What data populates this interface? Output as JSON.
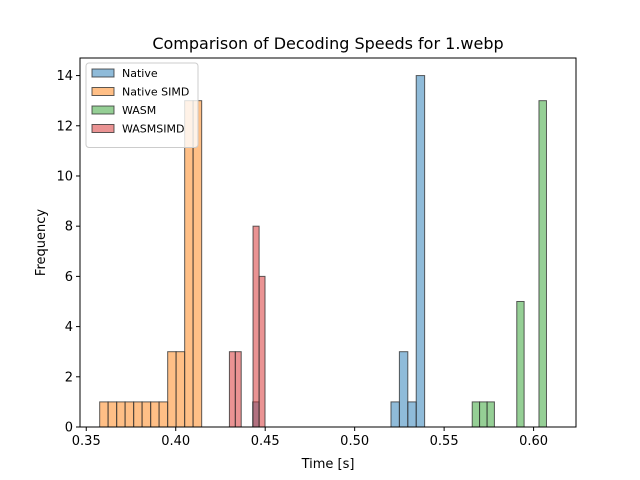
{
  "chart_data": {
    "type": "histogram",
    "title": "Comparison of Decoding Speeds for 1.webp",
    "xlabel": "Time [s]",
    "ylabel": "Frequency",
    "xlim": [
      0.3465,
      0.6237
    ],
    "ylim": [
      0,
      14.7
    ],
    "xticks": [
      0.35,
      0.4,
      0.45,
      0.5,
      0.55,
      0.6
    ],
    "xtick_labels": [
      "0.35",
      "0.40",
      "0.45",
      "0.50",
      "0.55",
      "0.60"
    ],
    "yticks": [
      0,
      2,
      4,
      6,
      8,
      10,
      12,
      14
    ],
    "ytick_labels": [
      "0",
      "2",
      "4",
      "6",
      "8",
      "10",
      "12",
      "14"
    ],
    "grid": false,
    "legend_position": "top-left",
    "series": [
      {
        "name": "Native",
        "color": "#1f77b4",
        "bins": [
          {
            "x0": 0.443,
            "x1": 0.4466,
            "count": 1
          },
          {
            "x0": 0.5203,
            "x1": 0.525,
            "count": 1
          },
          {
            "x0": 0.525,
            "x1": 0.5297,
            "count": 3
          },
          {
            "x0": 0.5297,
            "x1": 0.5344,
            "count": 1
          },
          {
            "x0": 0.5344,
            "x1": 0.5391,
            "count": 14
          }
        ]
      },
      {
        "name": "Native SIMD",
        "color": "#ff7f0e",
        "bins": [
          {
            "x0": 0.3575,
            "x1": 0.3622,
            "count": 1
          },
          {
            "x0": 0.3622,
            "x1": 0.367,
            "count": 1
          },
          {
            "x0": 0.367,
            "x1": 0.3717,
            "count": 1
          },
          {
            "x0": 0.3717,
            "x1": 0.3765,
            "count": 1
          },
          {
            "x0": 0.3765,
            "x1": 0.3812,
            "count": 1
          },
          {
            "x0": 0.3812,
            "x1": 0.386,
            "count": 1
          },
          {
            "x0": 0.386,
            "x1": 0.3907,
            "count": 1
          },
          {
            "x0": 0.3907,
            "x1": 0.3955,
            "count": 1
          },
          {
            "x0": 0.3955,
            "x1": 0.4002,
            "count": 3
          },
          {
            "x0": 0.4002,
            "x1": 0.405,
            "count": 3
          },
          {
            "x0": 0.405,
            "x1": 0.4097,
            "count": 13
          },
          {
            "x0": 0.4097,
            "x1": 0.4145,
            "count": 13
          }
        ]
      },
      {
        "name": "WASM",
        "color": "#2ca02c",
        "bins": [
          {
            "x0": 0.5657,
            "x1": 0.5698,
            "count": 1
          },
          {
            "x0": 0.5698,
            "x1": 0.574,
            "count": 1
          },
          {
            "x0": 0.574,
            "x1": 0.5781,
            "count": 1
          },
          {
            "x0": 0.5781,
            "x1": 0.5823,
            "count": 0
          },
          {
            "x0": 0.5823,
            "x1": 0.5864,
            "count": 0
          },
          {
            "x0": 0.5864,
            "x1": 0.5906,
            "count": 0
          },
          {
            "x0": 0.5906,
            "x1": 0.5947,
            "count": 5
          },
          {
            "x0": 0.5947,
            "x1": 0.5989,
            "count": 0
          },
          {
            "x0": 0.5989,
            "x1": 0.603,
            "count": 0
          },
          {
            "x0": 0.603,
            "x1": 0.6072,
            "count": 13
          }
        ]
      },
      {
        "name": "WASMSIMD",
        "color": "#d62728",
        "bins": [
          {
            "x0": 0.43,
            "x1": 0.4333,
            "count": 3
          },
          {
            "x0": 0.4333,
            "x1": 0.4366,
            "count": 3
          },
          {
            "x0": 0.4366,
            "x1": 0.4399,
            "count": 0
          },
          {
            "x0": 0.4399,
            "x1": 0.4432,
            "count": 0
          },
          {
            "x0": 0.4432,
            "x1": 0.4466,
            "count": 8
          },
          {
            "x0": 0.4466,
            "x1": 0.4499,
            "count": 6
          }
        ]
      }
    ]
  }
}
